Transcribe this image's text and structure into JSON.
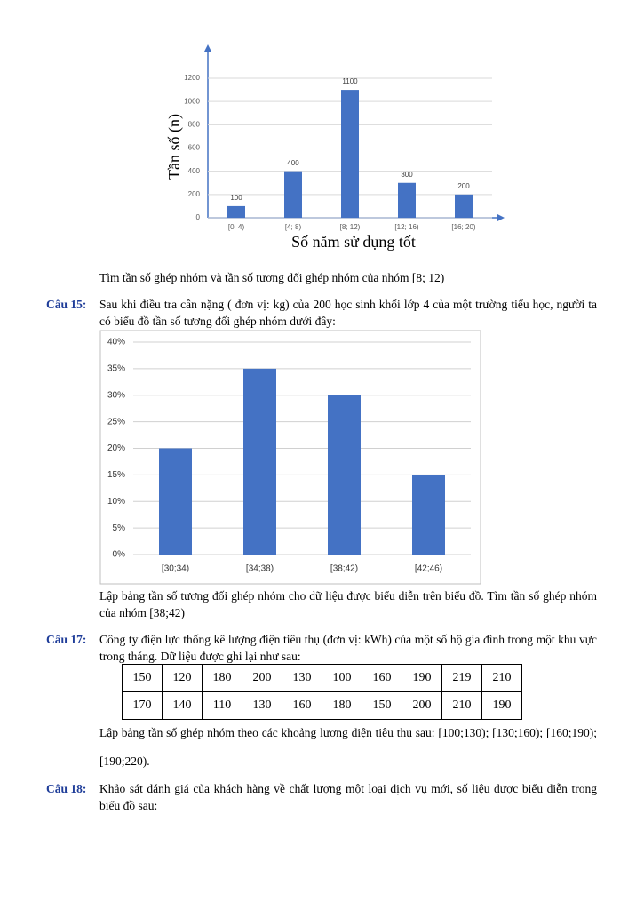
{
  "chart_data": [
    {
      "type": "bar",
      "y_label": "Tần số (n)",
      "x_label": "Số năm sử dụng tốt",
      "categories": [
        "[0; 4)",
        "[4; 8)",
        "[8; 12)",
        "[12; 16)",
        "[16; 20)"
      ],
      "values": [
        100,
        400,
        1100,
        300,
        200
      ],
      "color": "#4472c4",
      "ylim": [
        0,
        1200
      ],
      "yticks": [
        0,
        200,
        400,
        600,
        800,
        1000,
        1200
      ],
      "grid": true,
      "data_labels": true
    },
    {
      "type": "bar",
      "categories": [
        "[30;34)",
        "[34;38)",
        "[38;42)",
        "[42;46)"
      ],
      "values": [
        20,
        35,
        30,
        15
      ],
      "color": "#4472c4",
      "ylim": [
        0,
        40
      ],
      "yticks": [
        {
          "value": 0,
          "label": "0%"
        },
        {
          "value": 5,
          "label": "5%"
        },
        {
          "value": 10,
          "label": "10%"
        },
        {
          "value": 15,
          "label": "15%"
        },
        {
          "value": 20,
          "label": "20%"
        },
        {
          "value": 25,
          "label": "25%"
        },
        {
          "value": 30,
          "label": "30%"
        },
        {
          "value": 35,
          "label": "35%"
        },
        {
          "value": 40,
          "label": "40%"
        }
      ],
      "grid": true,
      "data_labels": false
    }
  ],
  "document": {
    "q14_task": "Tìm tần số ghép nhóm và tần số tương đối ghép nhóm của nhóm [8; 12)",
    "q15": {
      "label": "Câu 15:",
      "text": "Sau khi điều tra cân nặng ( đơn vị: kg) của 200 học sinh khối lớp 4 của một trường tiểu học, người ta có biểu đồ tần số tương đối ghép nhóm dưới đây:",
      "task": "Lập bảng tần số tương đối ghép nhóm cho dữ liệu được biểu diễn trên biểu đồ. Tìm tần số ghép nhóm của nhóm [38;42)"
    },
    "q17": {
      "label": "Câu 17:",
      "text": "Công ty điện lực thống kê lượng điện tiêu thụ (đơn vị: kWh) của một số hộ gia đình trong một khu vực trong tháng. Dữ liệu được ghi lại như sau:",
      "table": {
        "rows": [
          [
            "150",
            "120",
            "180",
            "200",
            "130",
            "100",
            "160",
            "190",
            "219",
            "210"
          ],
          [
            "170",
            "140",
            "110",
            "130",
            "160",
            "180",
            "150",
            "200",
            "210",
            "190"
          ]
        ]
      },
      "task": "Lập bảng tần số ghép nhóm theo các khoảng lương điện tiêu thụ sau: [100;130); [130;160); [160;190); [190;220)."
    },
    "q18": {
      "label": "Câu 18:",
      "text": "Khảo sát đánh giá của khách hàng về chất lượng một loại dịch vụ mới, số liệu được biểu diễn trong biểu đồ sau:"
    }
  }
}
